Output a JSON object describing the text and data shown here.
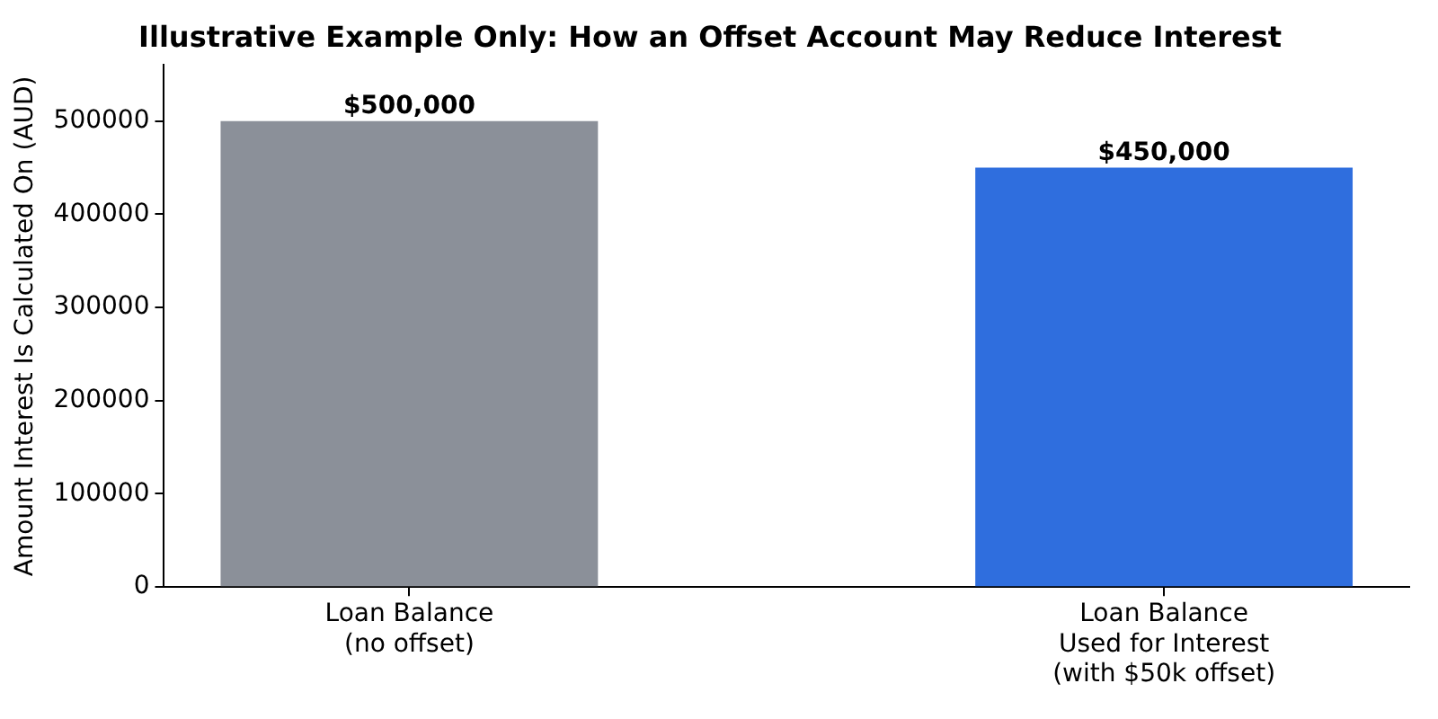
{
  "chart_data": {
    "type": "bar",
    "title": "Illustrative Example Only: How an Offset Account May Reduce Interest",
    "ylabel": "Amount Interest Is Calculated On (AUD)",
    "categories": [
      "Loan Balance\n(no offset)",
      "Loan Balance\nUsed for Interest\n(with $50k offset)"
    ],
    "values": [
      500000,
      450000
    ],
    "colors": [
      "#8b9099",
      "#2f6ede"
    ],
    "value_labels": [
      "$500,000",
      "$450,000"
    ],
    "ylim": [
      0,
      560000
    ],
    "yticks": [
      0,
      100000,
      200000,
      300000,
      400000,
      500000
    ]
  }
}
